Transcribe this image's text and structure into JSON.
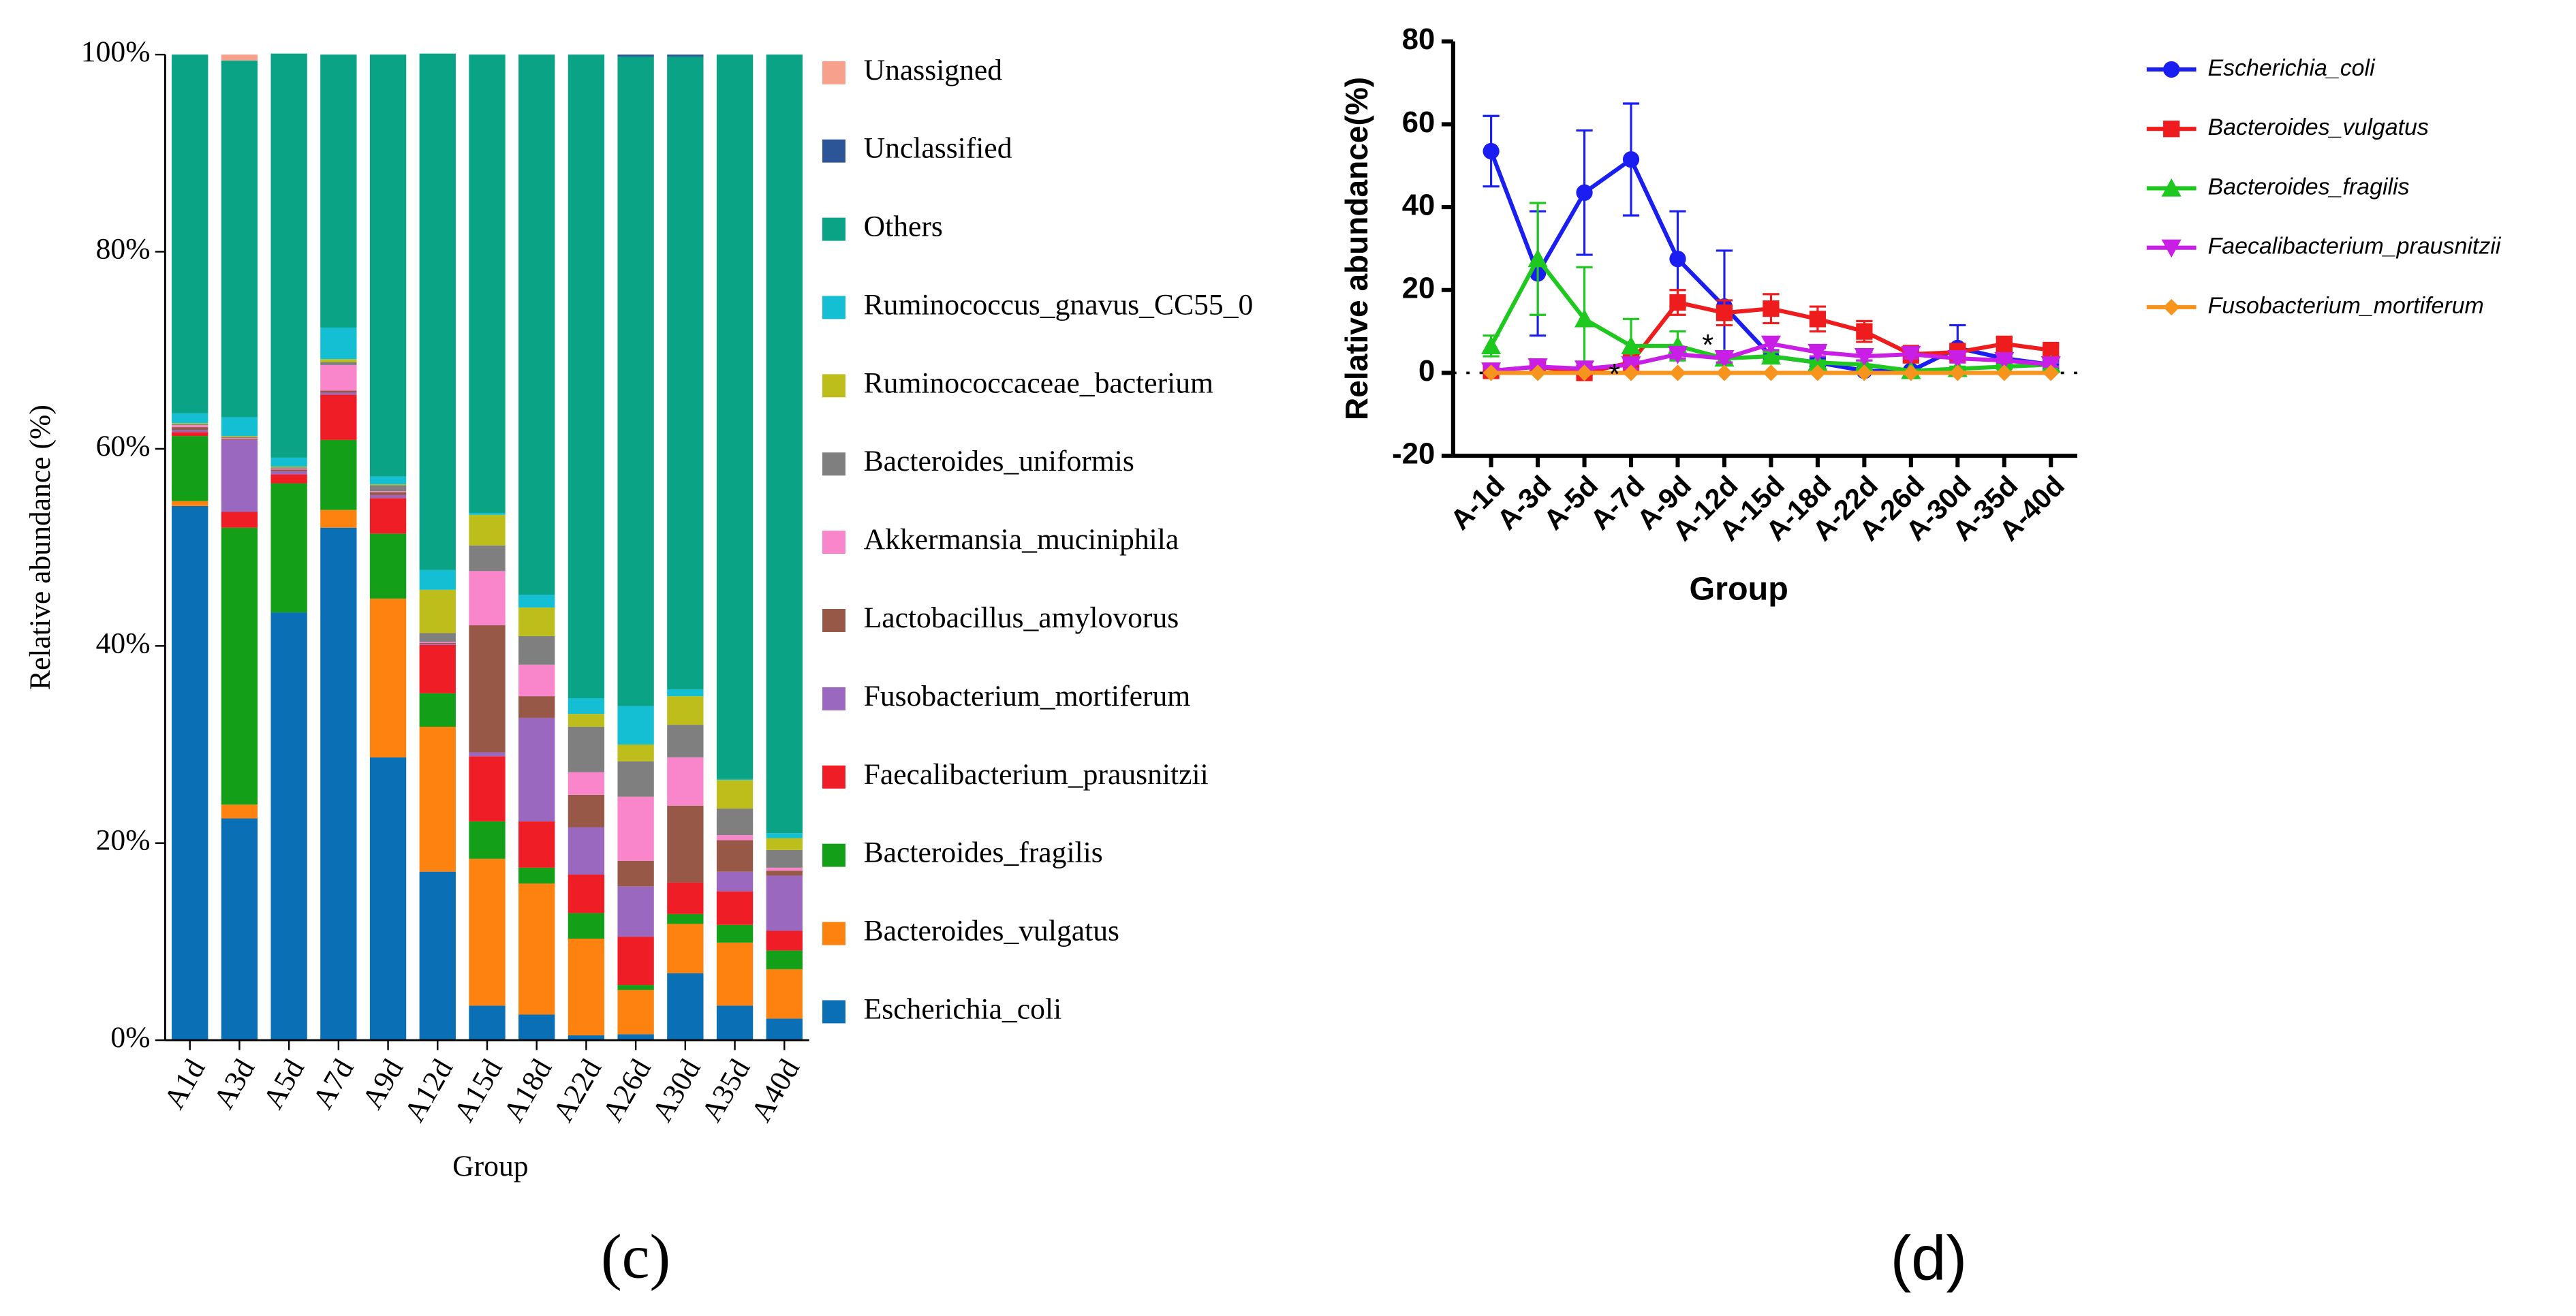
{
  "chart_data": [
    {
      "type": "bar",
      "stacked": true,
      "caption": "(c)",
      "y_label": "Relative abundance (%)",
      "x_label": "Group",
      "categories": [
        "A1d",
        "A3d",
        "A5d",
        "A7d",
        "A9d",
        "A12d",
        "A15d",
        "A18d",
        "A22d",
        "A26d",
        "A30d",
        "A35d",
        "A40d"
      ],
      "ylim": [
        0,
        100
      ],
      "yticks": [
        {
          "value": 0,
          "label": "0%"
        },
        {
          "value": 20,
          "label": "20%"
        },
        {
          "value": 40,
          "label": "40%"
        },
        {
          "value": 60,
          "label": "60%"
        },
        {
          "value": 80,
          "label": "80%"
        },
        {
          "value": 100,
          "label": "100%"
        }
      ],
      "legend": "right",
      "series": [
        {
          "name": "Escherichia_coli",
          "color": "#0b6fb5",
          "values": [
            54.2,
            22.5,
            43.4,
            52,
            28.7,
            17.1,
            3.5,
            2.6,
            0.5,
            0.6,
            6.8,
            3.5,
            2.2
          ]
        },
        {
          "name": "Bacteroides_vulgatus",
          "color": "#fd8210",
          "values": [
            0.5,
            1.4,
            0,
            1.8,
            16.1,
            14.7,
            14.9,
            13.3,
            9.8,
            4.5,
            5,
            6.4,
            5
          ]
        },
        {
          "name": "Bacteroides_fragilis",
          "color": "#13a018",
          "values": [
            6.6,
            28.1,
            13.1,
            7.1,
            6.6,
            3.4,
            3.8,
            1.6,
            2.6,
            0.5,
            1,
            1.8,
            1.9
          ]
        },
        {
          "name": "Faecalibacterium_prausnitzii",
          "color": "#ef1d26",
          "values": [
            0.4,
            1.6,
            0.9,
            4.6,
            3.6,
            4.9,
            6.6,
            4.7,
            3.9,
            4.9,
            3.2,
            3.4,
            2
          ]
        },
        {
          "name": "Fusobacterium_mortiferum",
          "color": "#9a68bf",
          "values": [
            0.2,
            7.3,
            0.3,
            0.2,
            0.3,
            0.1,
            0.4,
            10.5,
            4.8,
            5.1,
            0,
            2,
            5.6
          ]
        },
        {
          "name": "Lactobacillus_amylovorus",
          "color": "#975848",
          "values": [
            0.3,
            0.1,
            0.2,
            0.2,
            0.3,
            0.1,
            12.9,
            2.2,
            3.3,
            2.6,
            7.8,
            3.2,
            0.5
          ]
        },
        {
          "name": "Akkermansia_muciniphila",
          "color": "#f985cb",
          "values": [
            0.2,
            0.1,
            0.1,
            2.6,
            0.1,
            0.1,
            5.5,
            3.2,
            2.3,
            6.5,
            4.9,
            0.5,
            0.3
          ]
        },
        {
          "name": "Bacteroides_uniformis",
          "color": "#7f7f7f",
          "values": [
            0.1,
            0.1,
            0.1,
            0.3,
            0.6,
            0.9,
            2.6,
            2.9,
            4.6,
            3.6,
            3.3,
            2.7,
            1.8
          ]
        },
        {
          "name": "Ruminococcaceae_bacterium",
          "color": "#bdbe1c",
          "values": [
            0.1,
            0.1,
            0.1,
            0.3,
            0.1,
            4.4,
            3.1,
            2.9,
            1.3,
            1.7,
            2.9,
            2.9,
            1.2
          ]
        },
        {
          "name": "Ruminococcus_gnavus_CC55_0",
          "color": "#14bfd3",
          "values": [
            1.0,
            1.9,
            0.9,
            3.2,
            0.8,
            2.0,
            0.2,
            1.3,
            1.6,
            3.9,
            0.7,
            0.1,
            0.5
          ]
        },
        {
          "name": "Others",
          "color": "#0aa386",
          "values": [
            36.4,
            36.2,
            41,
            27.7,
            42.8,
            52.4,
            46.5,
            54.8,
            65.3,
            65.9,
            64.2,
            73.5,
            79
          ]
        },
        {
          "name": "Unclassified",
          "color": "#2c5597",
          "values": [
            0,
            0,
            0,
            0,
            0,
            0,
            0,
            0,
            0,
            0.2,
            0.2,
            0,
            0
          ]
        },
        {
          "name": "Unassigned",
          "color": "#f7a08b",
          "values": [
            0,
            0.6,
            0,
            0,
            0,
            0,
            0,
            0,
            0,
            0,
            0,
            0,
            0
          ]
        }
      ]
    },
    {
      "type": "line",
      "caption": "(d)",
      "y_label": "Relative abundance(%)",
      "x_label": "Group",
      "categories": [
        "A-1d",
        "A-3d",
        "A-5d",
        "A-7d",
        "A-9d",
        "A-12d",
        "A-15d",
        "A-18d",
        "A-22d",
        "A-26d",
        "A-30d",
        "A-35d",
        "A-40d"
      ],
      "ylim": [
        -20,
        80
      ],
      "yticks": [
        -20,
        0,
        20,
        40,
        60,
        80
      ],
      "zero_line": true,
      "legend": "right",
      "annotations": [
        {
          "text": "*",
          "x": "A-7d",
          "y": 0
        },
        {
          "text": "*",
          "x": "A-12d",
          "y": 7
        }
      ],
      "series": [
        {
          "name": "Escherichia_coli",
          "color": "#1a1ef0",
          "marker": "circle",
          "values": [
            53.5,
            24,
            43.5,
            51.5,
            27.5,
            16,
            4,
            2.5,
            0.5,
            0.5,
            6,
            3.5,
            2
          ],
          "errors": [
            8.5,
            15,
            15,
            13.5,
            11.5,
            13.5,
            1.5,
            1,
            0.5,
            0.5,
            5.5,
            1.5,
            1
          ]
        },
        {
          "name": "Bacteroides_vulgatus",
          "color": "#ee1c1c",
          "marker": "square",
          "values": [
            0.5,
            1.5,
            0,
            2.5,
            17,
            14.5,
            15.5,
            13,
            10,
            4.5,
            5,
            7,
            5.5
          ],
          "errors": [
            0.5,
            1,
            0.5,
            1,
            3,
            3,
            3.5,
            3,
            2.5,
            2,
            2,
            1.5,
            1
          ]
        },
        {
          "name": "Bacteroides_fragilis",
          "color": "#1ec81e",
          "marker": "triangle-up",
          "values": [
            6.5,
            27.5,
            13,
            6.5,
            6.5,
            3.5,
            4,
            2.5,
            2,
            0.5,
            1,
            1.5,
            2
          ],
          "errors": [
            2.5,
            13.5,
            12.5,
            6.5,
            3.5,
            1,
            1,
            0.5,
            1,
            0.3,
            0.5,
            0.5,
            0.5
          ]
        },
        {
          "name": "Faecalibacterium_prausnitzii",
          "color": "#c81ee6",
          "marker": "triangle-down",
          "values": [
            0.5,
            1.5,
            1,
            2,
            4.5,
            3.5,
            7,
            5,
            4,
            4.5,
            3.5,
            3,
            2
          ],
          "errors": [
            0.5,
            0.5,
            0.5,
            1,
            1,
            1,
            1.5,
            1,
            1,
            1,
            1,
            0.5,
            0.5
          ]
        },
        {
          "name": "Fusobacterium_mortiferum",
          "color": "#f7941d",
          "marker": "diamond",
          "values": [
            0,
            0,
            0,
            0,
            0,
            0,
            0,
            0,
            0,
            0,
            0,
            0,
            0
          ]
        }
      ]
    }
  ]
}
